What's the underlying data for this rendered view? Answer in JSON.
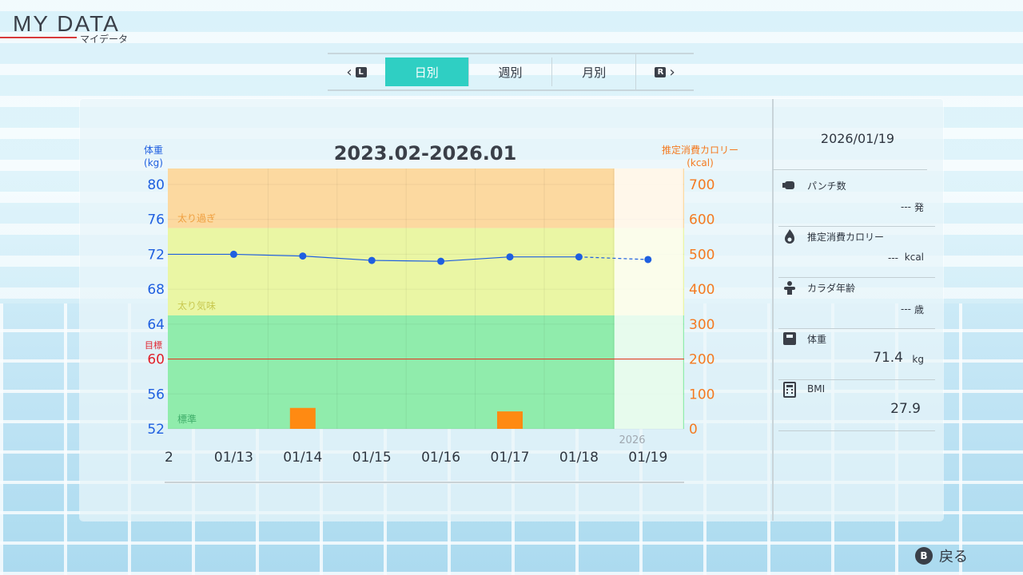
{
  "header": {
    "title": "MY DATA",
    "subtitle": "マイデータ"
  },
  "tabs": {
    "prev_key": "L",
    "next_key": "R",
    "items": [
      {
        "label": "日別",
        "active": true
      },
      {
        "label": "週別",
        "active": false
      },
      {
        "label": "月別",
        "active": false
      }
    ]
  },
  "chart_data": {
    "type": "line",
    "title": "2023.02-2026.01",
    "left_axis_label": [
      "体重",
      "(kg)"
    ],
    "right_axis_label": [
      "推定消費カロリー",
      "(kcal)"
    ],
    "categories": [
      "2",
      "01/13",
      "01/14",
      "01/15",
      "01/16",
      "01/17",
      "01/18",
      "01/19"
    ],
    "year_label": "2026",
    "left_ylim": [
      52,
      80
    ],
    "left_ticks": [
      80,
      76,
      72,
      68,
      64,
      60,
      56,
      52
    ],
    "right_ylim": [
      0,
      700
    ],
    "right_ticks": [
      700,
      600,
      500,
      400,
      300,
      200,
      100,
      0
    ],
    "target": {
      "label": "目標",
      "value": 60
    },
    "zones": [
      {
        "label": "太り過ぎ",
        "from": 75,
        "to": 80,
        "color": "#fcd9a0"
      },
      {
        "label": "太り気味",
        "from": 65,
        "to": 75,
        "color": "#eaf6a4"
      },
      {
        "label": "標準",
        "from": 52,
        "to": 65,
        "color": "#90ecac"
      }
    ],
    "series": [
      {
        "values": [
          72.0,
          72.0,
          71.8,
          71.3,
          71.2,
          71.7,
          71.7,
          71.4
        ],
        "color": "#1f5fe0"
      },
      {
        "values": [
          null,
          null,
          60,
          null,
          null,
          50,
          null,
          null
        ],
        "color": "#ff8a12"
      }
    ]
  },
  "side": {
    "date": "2026/01/19",
    "rows": [
      {
        "icon": "punch-icon",
        "label": "パンチ数",
        "value": "---",
        "unit": "発"
      },
      {
        "icon": "flame-icon",
        "label": "推定消費カロリー",
        "value": "---",
        "unit": "kcal"
      },
      {
        "icon": "muscle-icon",
        "label": "カラダ年齢",
        "value": "---",
        "unit": "歳"
      },
      {
        "icon": "scale-icon",
        "label": "体重",
        "value": "71.4",
        "unit": "kg"
      },
      {
        "icon": "calculator-icon",
        "label": "BMI",
        "value": "27.9",
        "unit": ""
      }
    ]
  },
  "footer": {
    "back_key": "B",
    "back_label": "戻る"
  }
}
